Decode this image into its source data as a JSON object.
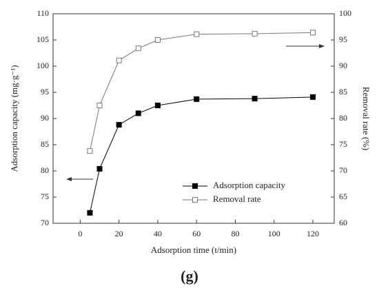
{
  "chart_data": {
    "type": "line",
    "x_label": "Adsorption time (t/min)",
    "y_label": "Adsorption capacity (mg·g⁻¹)",
    "y2_label": "Removal rate (%)",
    "caption": "(g)",
    "x": [
      5,
      10,
      20,
      30,
      40,
      60,
      90,
      120
    ],
    "series": [
      {
        "name": "Adsorption capacity",
        "color": "#000000",
        "marker": "filled-square",
        "values": [
          72,
          80.4,
          88.8,
          91,
          92.5,
          93.7,
          93.8,
          94.1
        ]
      },
      {
        "name": "Removal rate",
        "color": "#777777",
        "marker": "open-square",
        "axis": "y2",
        "values": [
          73.8,
          82.5,
          91.1,
          93.4,
          95.0,
          96.1,
          96.2,
          96.4
        ]
      }
    ],
    "xlim": [
      -14,
      131
    ],
    "xticks": [
      0,
      20,
      40,
      60,
      80,
      100,
      120
    ],
    "ylim": [
      70,
      110
    ],
    "yticks": [
      70,
      75,
      80,
      85,
      90,
      95,
      100,
      105,
      110
    ],
    "y2lim": [
      60,
      100
    ],
    "y2ticks": [
      60,
      65,
      70,
      75,
      80,
      85,
      90,
      95,
      100
    ],
    "legend": "lower right",
    "grid": false
  }
}
